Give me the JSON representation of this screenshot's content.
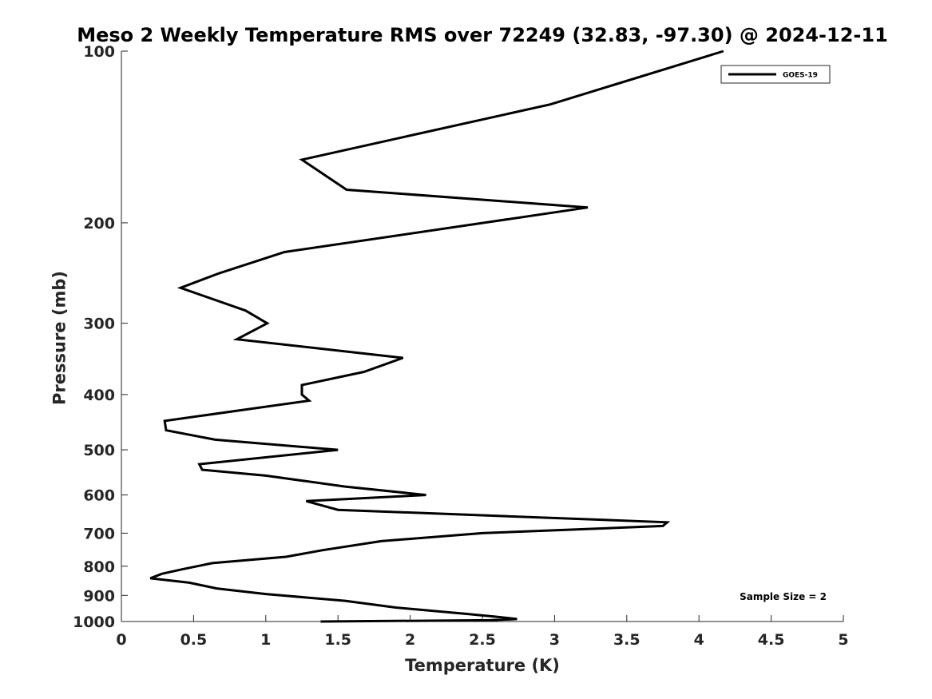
{
  "chart_data": {
    "type": "line",
    "title": "Meso 2 Weekly Temperature RMS over 72249 (32.83, -97.30) @ 2024-12-11",
    "xlabel": "Temperature (K)",
    "ylabel": "Pressure (mb)",
    "xlim": [
      0,
      5
    ],
    "ylim": [
      1000,
      100
    ],
    "yscale": "log",
    "y_reversed": true,
    "grid": false,
    "legend_position": "top-right",
    "x_ticks": [
      "0",
      "0.5",
      "1",
      "1.5",
      "2",
      "2.5",
      "3",
      "3.5",
      "4",
      "4.5",
      "5"
    ],
    "x_tick_values": [
      0,
      0.5,
      1,
      1.5,
      2,
      2.5,
      3,
      3.5,
      4,
      4.5,
      5
    ],
    "y_ticks": [
      "100",
      "200",
      "300",
      "400",
      "500",
      "600",
      "700",
      "800",
      "900",
      "1000"
    ],
    "y_tick_values": [
      100,
      200,
      300,
      400,
      500,
      600,
      700,
      800,
      900,
      1000
    ],
    "annotation": "Sample Size = 2",
    "series": [
      {
        "name": "GOES-19",
        "color": "#000000",
        "x": [
          4.17,
          2.97,
          1.25,
          1.56,
          3.23,
          2.51,
          1.13,
          0.68,
          0.41,
          0.86,
          1.01,
          0.8,
          1.95,
          1.68,
          1.25,
          1.25,
          1.3,
          0.3,
          0.31,
          0.65,
          1.5,
          0.54,
          0.56,
          1.0,
          1.55,
          2.11,
          1.28,
          1.5,
          3.78,
          3.75,
          2.5,
          1.8,
          1.39,
          1.14,
          0.63,
          0.42,
          0.28,
          0.2,
          0.47,
          0.66,
          1.0,
          1.55,
          1.9,
          2.4,
          2.58,
          2.74,
          2.55,
          1.38
        ],
        "y": [
          100,
          124,
          155,
          175,
          188,
          200,
          225,
          245,
          260,
          285,
          300,
          320,
          345,
          365,
          385,
          400,
          410,
          445,
          462,
          480,
          500,
          530,
          542,
          555,
          580,
          600,
          615,
          637,
          670,
          680,
          700,
          723,
          750,
          770,
          790,
          810,
          825,
          840,
          855,
          875,
          895,
          920,
          945,
          970,
          980,
          990,
          995,
          1000
        ]
      }
    ]
  }
}
